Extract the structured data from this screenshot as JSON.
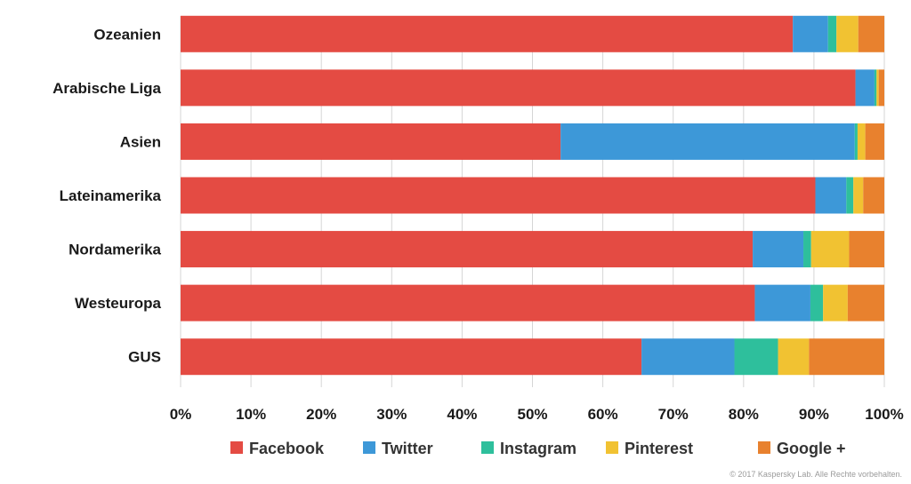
{
  "chart_data": {
    "type": "bar",
    "orientation": "horizontal",
    "stacked": true,
    "categories": [
      "Ozeanien",
      "Arabische Liga",
      "Asien",
      "Lateinamerika",
      "Nordamerika",
      "Westeuropa",
      "GUS"
    ],
    "series": [
      {
        "name": "Facebook",
        "color": "#e44b43",
        "values": [
          87.0,
          95.9,
          54.0,
          90.2,
          81.3,
          81.6,
          65.5
        ]
      },
      {
        "name": "Twitter",
        "color": "#3d98d8",
        "values": [
          5.0,
          2.7,
          41.8,
          4.4,
          7.2,
          7.9,
          13.2
        ]
      },
      {
        "name": "Instagram",
        "color": "#2ebf9c",
        "values": [
          1.2,
          0.3,
          0.4,
          1.0,
          1.1,
          1.8,
          6.2
        ]
      },
      {
        "name": "Pinterest",
        "color": "#f1c232",
        "values": [
          3.1,
          0.3,
          1.1,
          1.4,
          5.4,
          3.5,
          4.4
        ]
      },
      {
        "name": "Google +",
        "color": "#e8812e",
        "values": [
          3.7,
          0.8,
          2.7,
          3.0,
          5.0,
          5.2,
          10.7
        ]
      }
    ],
    "xticks": [
      "0%",
      "10%",
      "20%",
      "30%",
      "40%",
      "50%",
      "60%",
      "70%",
      "80%",
      "90%",
      "100%"
    ],
    "xlim": [
      0,
      100
    ],
    "grid": "vertical",
    "legend_position": "bottom",
    "title": "",
    "xlabel": "",
    "ylabel": ""
  },
  "copyright": "© 2017 Kaspersky Lab. Alle Rechte vorbehalten."
}
